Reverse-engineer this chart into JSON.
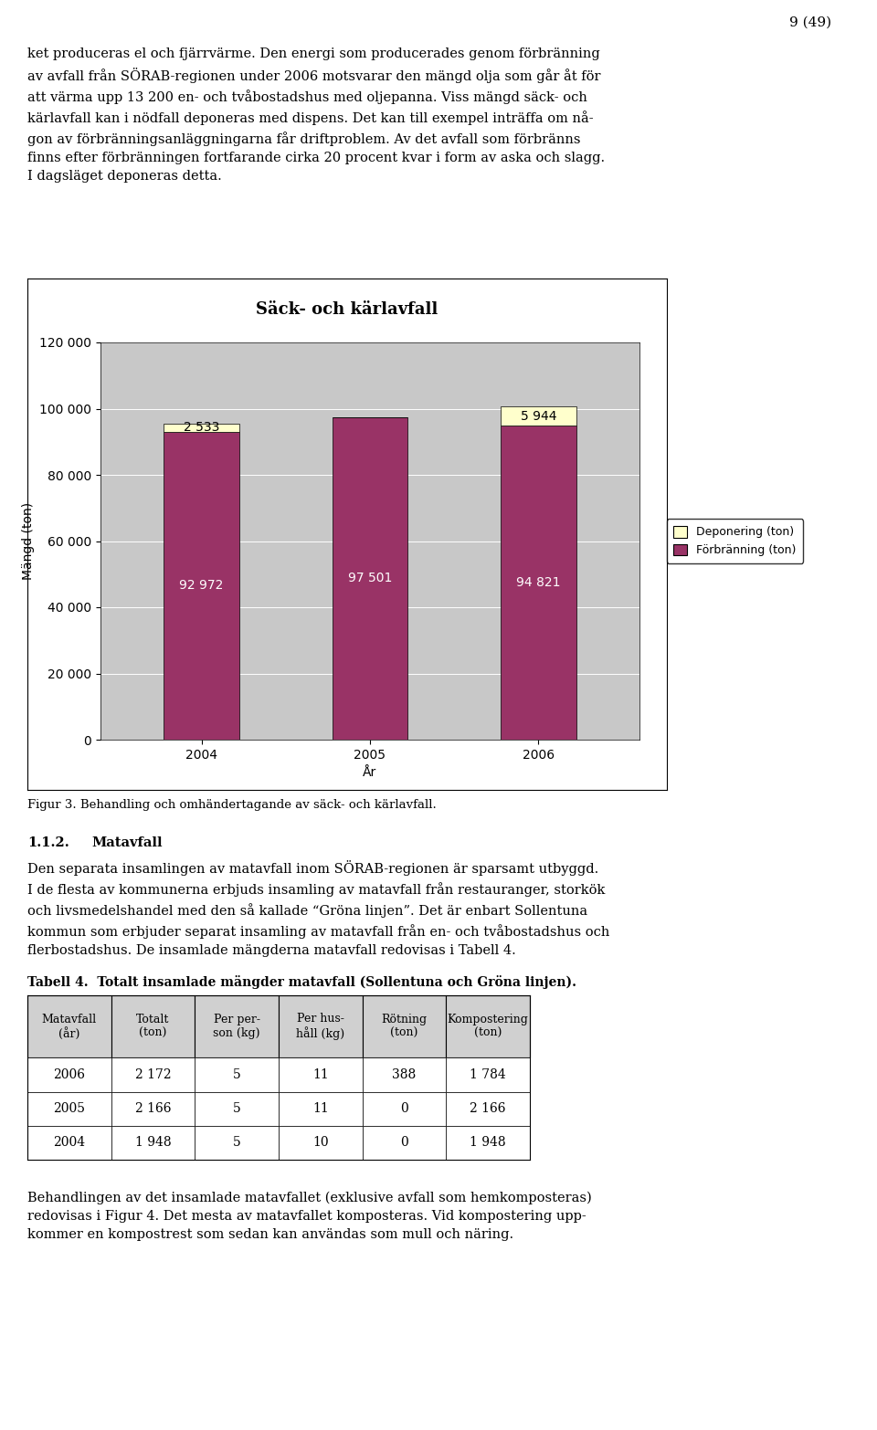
{
  "title": "Säck- och kärlavfall",
  "years": [
    "2004",
    "2005",
    "2006"
  ],
  "forbranning": [
    92972,
    97501,
    94821
  ],
  "deponering": [
    2533,
    0,
    5944
  ],
  "forbranning_color": "#993366",
  "deponering_color": "#ffffcc",
  "bar_edge_color": "#000000",
  "plot_bg_color": "#c8c8c8",
  "fig_bg_color": "#ffffff",
  "ylabel": "Mängd (ton)",
  "xlabel": "År",
  "ylim": [
    0,
    120000
  ],
  "yticks": [
    0,
    20000,
    40000,
    60000,
    80000,
    100000,
    120000
  ],
  "ytick_labels": [
    "0",
    "20 000",
    "40 000",
    "60 000",
    "80 000",
    "100 000",
    "120 000"
  ],
  "legend_forbranning": "Förbränning (ton)",
  "legend_deponering": "Deponering (ton)",
  "bar_width": 0.45,
  "forbranning_labels": [
    "92 972",
    "97 501",
    "94 821"
  ],
  "deponering_labels": [
    "2 533",
    "",
    "5 944"
  ],
  "page_number": "9 (49)",
  "text_above": "ket produceras el och fjärrvärme. Den energi som producerades genom förbränning\nav avfall från SÖRAB-regionen under 2006 motsvarar den mängd olja som går åt för\natt värma upp 13 200 en- och tvåbostadshus med oljepanna. Viss mängd säck- och\nkärlavfall kan i nödfall deponeras med dispens. Det kan till exempel inträffa om nå-\ngon av förbränningsanläggningarna får driftproblem. Av det avfall som förbränns\nfinns efter förbränningen fortfarande cirka 20 procent kvar i form av aska och slagg.\nI dagsläget deponeras detta.",
  "fig_caption": "Figur 3. Behandling och omhändertagande av säck- och kärlavfall.",
  "section_heading_num": "1.1.2.",
  "section_heading_title": "Matavfall",
  "section_text": "Den separata insamlingen av matavfall inom SÖRAB-regionen är sparsamt utbyggd.\nI de flesta av kommunerna erbjuds insamling av matavfall från restauranger, storkök\noch livsmedelshandel med den så kallade “Gröna linjen”. Det är enbart Sollentuna\nkommun som erbjuder separat insamling av matavfall från en- och tvåbostadshus och\nflerbostadshus. De insamlade mängderna matavfall redovisas i Tabell 4.",
  "table_title": "Tabell 4.  Totalt insamlade mängder matavfall (Sollentuna och Gröna linjen).",
  "table_headers": [
    "Matavfall\n(år)",
    "Totalt\n(ton)",
    "Per per-\nson (kg)",
    "Per hus-\nhåll (kg)",
    "Rötning\n(ton)",
    "Kompostering\n(ton)"
  ],
  "table_rows": [
    [
      "2006",
      "2 172",
      "5",
      "11",
      "388",
      "1 784"
    ],
    [
      "2005",
      "2 166",
      "5",
      "11",
      "0",
      "2 166"
    ],
    [
      "2004",
      "1 948",
      "5",
      "10",
      "0",
      "1 948"
    ]
  ],
  "bottom_text": "Behandlingen av det insamlade matavfallet (exklusive avfall som hemkomposteras)\nredovisas i Figur 4. Det mesta av matavfallet komposteras. Vid kompostering upp-\nkommer en kompostrest som sedan kan användas som mull och näring."
}
